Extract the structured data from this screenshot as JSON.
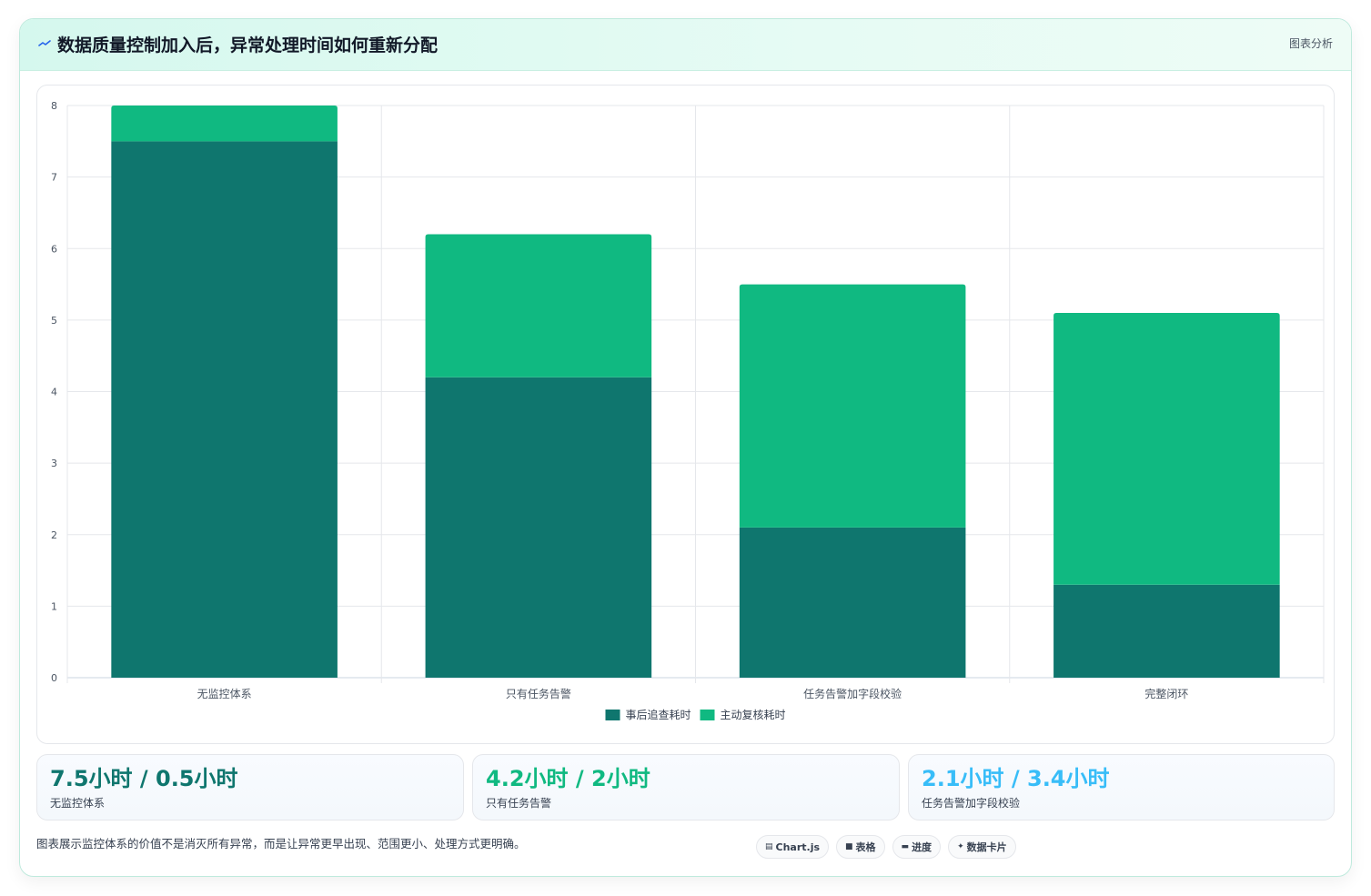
{
  "header": {
    "title": "数据质量控制加入后，异常处理时间如何重新分配",
    "tag": "图表分析"
  },
  "chart_data": {
    "type": "bar",
    "stacked": true,
    "categories": [
      "无监控体系",
      "只有任务告警",
      "任务告警加字段校验",
      "完整闭环"
    ],
    "series": [
      {
        "name": "事后追查耗时",
        "values": [
          7.5,
          4.2,
          2.1,
          1.3
        ],
        "color": "#0f766e"
      },
      {
        "name": "主动复核耗时",
        "values": [
          0.5,
          2.0,
          3.4,
          3.8
        ],
        "color": "#10b981"
      }
    ],
    "ylim": [
      0,
      8
    ],
    "yticks": [
      "0",
      "1",
      "2",
      "3",
      "4",
      "5",
      "6",
      "7",
      "8"
    ],
    "grid": true,
    "legend": "bottom"
  },
  "stats": [
    {
      "value": "7.5小时 / 0.5小时",
      "label": "无监控体系",
      "color": "#0f766e"
    },
    {
      "value": "4.2小时 / 2小时",
      "label": "只有任务告警",
      "color": "#10b981"
    },
    {
      "value": "2.1小时 / 3.4小时",
      "label": "任务告警加字段校验",
      "color": "#38bdf8"
    }
  ],
  "footnote": "图表展示监控体系的价值不是消灭所有异常，而是让异常更早出现、范围更小、处理方式更明确。",
  "pills": [
    {
      "icon": "▤",
      "label": "Chart.js"
    },
    {
      "icon": "■",
      "label": "表格"
    },
    {
      "icon": "▬",
      "label": "进度"
    },
    {
      "icon": "✦",
      "label": "数据卡片"
    }
  ]
}
